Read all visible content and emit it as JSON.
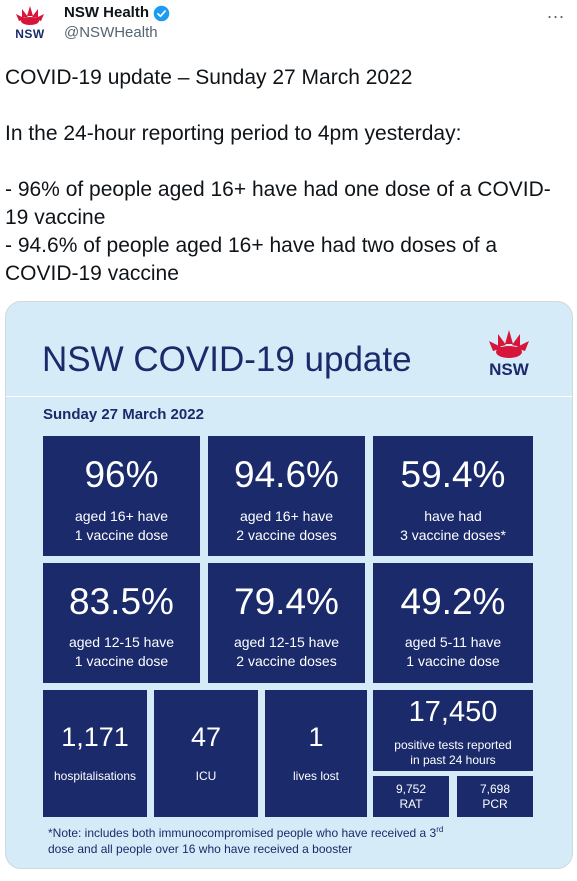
{
  "account": {
    "name": "NSW Health",
    "handle": "@NSWHealth",
    "logo_text": "NSW",
    "more_icon": "..."
  },
  "tweet": {
    "text": "COVID-19 update – Sunday 27 March 2022\n\nIn the 24-hour reporting period to 4pm yesterday:\n\n- 96% of people aged 16+ have had one dose of a COVID-19 vaccine\n- 94.6% of people aged 16+ have had two doses of a COVID-19 vaccine"
  },
  "card": {
    "title": "NSW COVID-19 update",
    "logo_text": "NSW",
    "date": "Sunday 27 March 2022",
    "tiles": [
      {
        "value": "96%",
        "line1": "aged 16+ have",
        "line2": "1 vaccine dose"
      },
      {
        "value": "94.6%",
        "line1": "aged 16+ have",
        "line2": "2 vaccine doses"
      },
      {
        "value": "59.4%",
        "line1": "have had",
        "line2": "3 vaccine doses*"
      },
      {
        "value": "83.5%",
        "line1": "aged 12-15 have",
        "line2": "1 vaccine dose"
      },
      {
        "value": "79.4%",
        "line1": "aged 12-15 have",
        "line2": "2 vaccine doses"
      },
      {
        "value": "49.2%",
        "line1": "aged 5-11 have",
        "line2": "1 vaccine dose"
      }
    ],
    "hospital": {
      "value": "1,171",
      "label": "hospitalisations"
    },
    "icu": {
      "value": "47",
      "label": "ICU"
    },
    "deaths": {
      "value": "1",
      "label": "lives lost"
    },
    "tests": {
      "value": "17,450",
      "line1": "positive tests reported",
      "line2": "in past 24 hours",
      "rat_value": "9,752",
      "rat_label": "RAT",
      "pcr_value": "7,698",
      "pcr_label": "PCR"
    },
    "footnote": {
      "part1": "*Note: includes both immunocompromised people who have received a 3",
      "sup": "rd",
      "part2": "dose and all people over 16 who have received a booster"
    }
  },
  "colors": {
    "navy": "#1b2a6b",
    "card_bg": "#d5ebf7",
    "waratah_red": "#d7153a",
    "verified_blue": "#1d9bf0"
  }
}
